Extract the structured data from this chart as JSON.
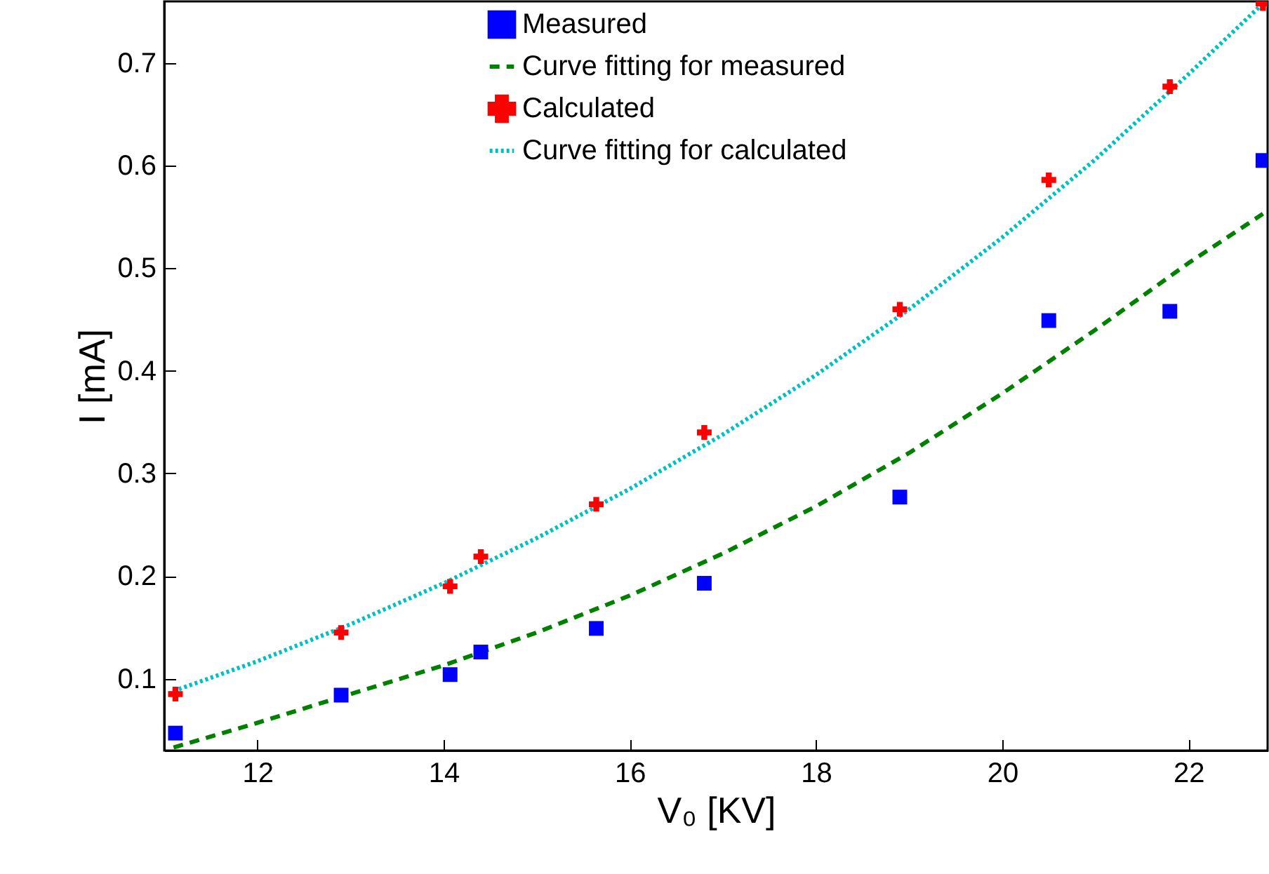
{
  "chart_data": {
    "type": "scatter",
    "xlabel": "V₀ [KV]",
    "ylabel": "I [mA]",
    "xlim": [
      11,
      22.85
    ],
    "ylim": [
      0.03,
      0.76
    ],
    "xticks": [
      12,
      14,
      16,
      18,
      20,
      22
    ],
    "yticks": [
      0.1,
      0.2,
      0.3,
      0.4,
      0.5,
      0.6,
      0.7
    ],
    "grid": false,
    "legend": "top right",
    "series": [
      {
        "name": "Measured",
        "marker": "square",
        "color": "#0000ff",
        "x": [
          11.12,
          12.9,
          14.07,
          14.4,
          15.64,
          16.8,
          18.9,
          20.5,
          21.8,
          22.8
        ],
        "values": [
          0.047,
          0.084,
          0.104,
          0.126,
          0.149,
          0.193,
          0.277,
          0.449,
          0.458,
          0.605
        ]
      },
      {
        "name": "Curve fitting for measured",
        "type": "line",
        "line_style": "dashed",
        "color": "#008000",
        "x": [
          11.1,
          12,
          13,
          14,
          15,
          16,
          17,
          18,
          19,
          20,
          21,
          22,
          22.8
        ],
        "values": [
          0.033,
          0.057,
          0.085,
          0.113,
          0.145,
          0.181,
          0.222,
          0.268,
          0.32,
          0.378,
          0.44,
          0.505,
          0.553
        ]
      },
      {
        "name": "Calculated",
        "marker": "cross",
        "color": "#ff0000",
        "x": [
          11.12,
          12.9,
          14.07,
          14.4,
          15.64,
          16.8,
          18.9,
          20.5,
          21.8,
          22.8
        ],
        "values": [
          0.085,
          0.145,
          0.19,
          0.219,
          0.27,
          0.34,
          0.46,
          0.586,
          0.677,
          0.758
        ]
      },
      {
        "name": "Curve fitting for calculated",
        "type": "line",
        "line_style": "dotted",
        "color": "#00c0c0",
        "x": [
          11.1,
          12,
          13,
          14,
          15,
          16,
          17,
          18,
          19,
          20,
          21,
          22,
          22.8
        ],
        "values": [
          0.088,
          0.117,
          0.153,
          0.193,
          0.237,
          0.285,
          0.338,
          0.396,
          0.46,
          0.53,
          0.606,
          0.689,
          0.758
        ]
      }
    ]
  }
}
